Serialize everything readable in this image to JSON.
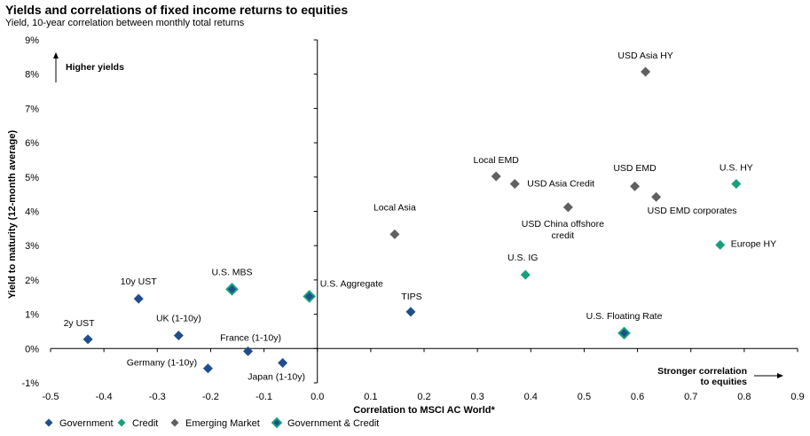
{
  "chart_data": {
    "type": "scatter",
    "title": "Yields and correlations of fixed income returns to equities",
    "subtitle": "Yield, 10-year correlation between monthly total returns",
    "xlabel": "Correlation to MSCI AC World*",
    "ylabel": "Yield to maturity (12-month average)",
    "xlim": [
      -0.5,
      0.9
    ],
    "ylim": [
      -1,
      9
    ],
    "x_ticks": [
      "-0.5",
      "-0.4",
      "-0.3",
      "-0.2",
      "-0.1",
      "0.0",
      "0.1",
      "0.2",
      "0.3",
      "0.4",
      "0.5",
      "0.6",
      "0.7",
      "0.8",
      "0.9"
    ],
    "y_ticks": [
      "-1%",
      "0%",
      "1%",
      "2%",
      "3%",
      "4%",
      "5%",
      "6%",
      "7%",
      "8%",
      "9%"
    ],
    "annotations": {
      "higher_yields": "Higher yields",
      "stronger_correlation_line1": "Stronger correlation",
      "stronger_correlation_line2": "to equities"
    },
    "colors": {
      "Government": "#1f4e8c",
      "Credit": "#18a07c",
      "Emerging Market": "#606060"
    },
    "legend": [
      {
        "name": "Government",
        "category": "Government"
      },
      {
        "name": "Credit",
        "category": "Credit"
      },
      {
        "name": "Emerging Market",
        "category": "Emerging Market"
      },
      {
        "name": "Government & Credit",
        "category": "Government & Credit"
      }
    ],
    "points": [
      {
        "label": "2y UST",
        "x": -0.43,
        "y": 0.27,
        "category": "Government"
      },
      {
        "label": "10y UST",
        "x": -0.335,
        "y": 1.45,
        "category": "Government"
      },
      {
        "label": "UK (1-10y)",
        "x": -0.26,
        "y": 0.38,
        "category": "Government"
      },
      {
        "label": "Germany (1-10y)",
        "x": -0.205,
        "y": -0.58,
        "category": "Government"
      },
      {
        "label": "France (1-10y)",
        "x": -0.13,
        "y": -0.08,
        "category": "Government"
      },
      {
        "label": "Japan (1-10y)",
        "x": -0.065,
        "y": -0.42,
        "category": "Government"
      },
      {
        "label": "TIPS",
        "x": 0.175,
        "y": 1.07,
        "category": "Government"
      },
      {
        "label": "U.S. MBS",
        "x": -0.16,
        "y": 1.73,
        "category": "Government & Credit"
      },
      {
        "label": "U.S. Aggregate",
        "x": -0.015,
        "y": 1.52,
        "category": "Government & Credit"
      },
      {
        "label": "U.S. Floating Rate",
        "x": 0.575,
        "y": 0.45,
        "category": "Government & Credit"
      },
      {
        "label": "U.S. IG",
        "x": 0.39,
        "y": 2.15,
        "category": "Credit"
      },
      {
        "label": "U.S. HY",
        "x": 0.785,
        "y": 4.8,
        "category": "Credit"
      },
      {
        "label": "Europe HY",
        "x": 0.755,
        "y": 3.02,
        "category": "Credit"
      },
      {
        "label": "Local Asia",
        "x": 0.145,
        "y": 3.33,
        "category": "Emerging Market"
      },
      {
        "label": "Local EMD",
        "x": 0.335,
        "y": 5.02,
        "category": "Emerging Market"
      },
      {
        "label": "USD Asia Credit",
        "x": 0.37,
        "y": 4.8,
        "category": "Emerging Market"
      },
      {
        "label": "USD China offshore credit",
        "x": 0.47,
        "y": 4.12,
        "category": "Emerging Market"
      },
      {
        "label": "USD EMD",
        "x": 0.595,
        "y": 4.73,
        "category": "Emerging Market"
      },
      {
        "label": "USD EMD corporates",
        "x": 0.635,
        "y": 4.42,
        "category": "Emerging Market"
      },
      {
        "label": "USD Asia HY",
        "x": 0.615,
        "y": 8.07,
        "category": "Emerging Market"
      }
    ]
  }
}
